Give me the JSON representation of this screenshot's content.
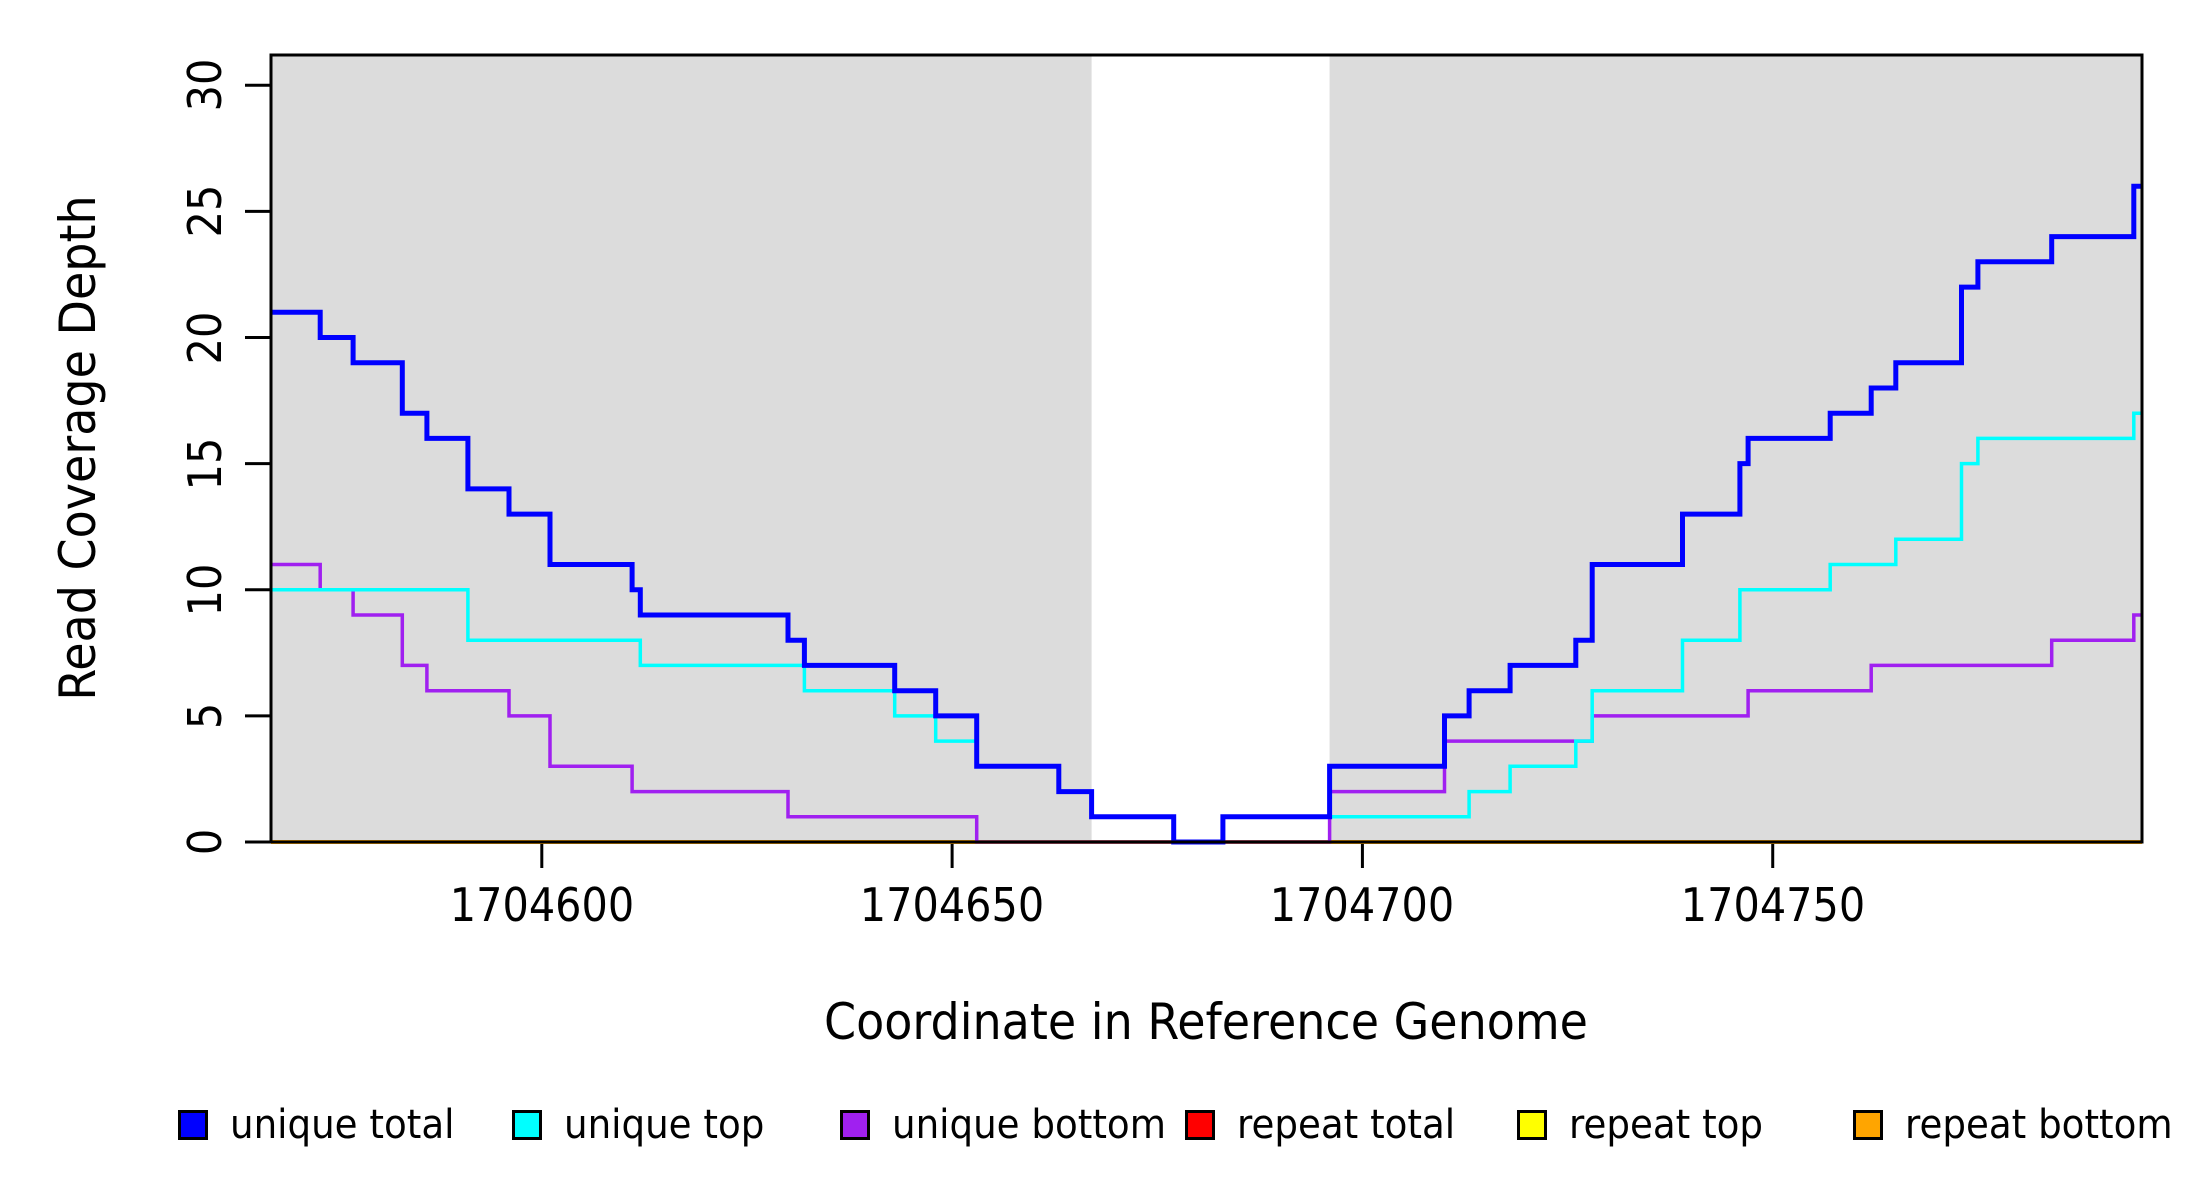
{
  "figure": {
    "background": "#ffffff",
    "frame_color": "#000000"
  },
  "chart_data": {
    "type": "line",
    "subtype": "step",
    "title": "",
    "xlabel": "Coordinate in Reference Genome",
    "ylabel": "Read Coverage Depth",
    "xlim": [
      1704567,
      1704795
    ],
    "ylim": [
      0,
      31.2
    ],
    "grid": false,
    "legend_position": "bottom",
    "xticks": [
      {
        "value": 1704600,
        "label": "1704600"
      },
      {
        "value": 1704650,
        "label": "1704650"
      },
      {
        "value": 1704700,
        "label": "1704700"
      },
      {
        "value": 1704750,
        "label": "1704750"
      }
    ],
    "yticks": [
      {
        "value": 0,
        "label": "0"
      },
      {
        "value": 5,
        "label": "5"
      },
      {
        "value": 10,
        "label": "10"
      },
      {
        "value": 15,
        "label": "15"
      },
      {
        "value": 20,
        "label": "20"
      },
      {
        "value": 25,
        "label": "25"
      },
      {
        "value": 30,
        "label": "30"
      }
    ],
    "shaded_regions": {
      "color": "#DCDCDC",
      "ranges": [
        [
          1704567,
          1704667
        ],
        [
          1704696,
          1704795
        ]
      ]
    },
    "series": [
      {
        "name": "unique total",
        "color": "#0000FF",
        "line_width": 5,
        "steps": [
          [
            1704567,
            21
          ],
          [
            1704573,
            20
          ],
          [
            1704577,
            19
          ],
          [
            1704583,
            17
          ],
          [
            1704586,
            16
          ],
          [
            1704591,
            14
          ],
          [
            1704596,
            13
          ],
          [
            1704601,
            11
          ],
          [
            1704611,
            10
          ],
          [
            1704612,
            9
          ],
          [
            1704630,
            8
          ],
          [
            1704632,
            7
          ],
          [
            1704643,
            6
          ],
          [
            1704648,
            5
          ],
          [
            1704653,
            3
          ],
          [
            1704663,
            2
          ],
          [
            1704667,
            1
          ],
          [
            1704677,
            0
          ],
          [
            1704683,
            1
          ],
          [
            1704696,
            3
          ],
          [
            1704710,
            5
          ],
          [
            1704713,
            6
          ],
          [
            1704718,
            7
          ],
          [
            1704726,
            8
          ],
          [
            1704728,
            11
          ],
          [
            1704739,
            13
          ],
          [
            1704746,
            15
          ],
          [
            1704747,
            16
          ],
          [
            1704757,
            17
          ],
          [
            1704762,
            18
          ],
          [
            1704765,
            19
          ],
          [
            1704773,
            22
          ],
          [
            1704775,
            23
          ],
          [
            1704784,
            24
          ],
          [
            1704794,
            26
          ]
        ]
      },
      {
        "name": "unique top",
        "color": "#00FFFF",
        "line_width": 3.5,
        "steps": [
          [
            1704567,
            10
          ],
          [
            1704591,
            8
          ],
          [
            1704612,
            7
          ],
          [
            1704632,
            6
          ],
          [
            1704643,
            5
          ],
          [
            1704648,
            4
          ],
          [
            1704653,
            3
          ],
          [
            1704663,
            2
          ],
          [
            1704667,
            1
          ],
          [
            1704677,
            0
          ],
          [
            1704683,
            1
          ],
          [
            1704713,
            2
          ],
          [
            1704718,
            3
          ],
          [
            1704726,
            4
          ],
          [
            1704728,
            6
          ],
          [
            1704739,
            8
          ],
          [
            1704746,
            10
          ],
          [
            1704757,
            11
          ],
          [
            1704765,
            12
          ],
          [
            1704773,
            15
          ],
          [
            1704775,
            16
          ],
          [
            1704794,
            17
          ]
        ]
      },
      {
        "name": "unique bottom",
        "color": "#A020F0",
        "line_width": 3.5,
        "steps": [
          [
            1704567,
            11
          ],
          [
            1704573,
            10
          ],
          [
            1704577,
            9
          ],
          [
            1704583,
            7
          ],
          [
            1704586,
            6
          ],
          [
            1704596,
            5
          ],
          [
            1704601,
            3
          ],
          [
            1704611,
            2
          ],
          [
            1704630,
            1
          ],
          [
            1704653,
            0
          ],
          [
            1704696,
            2
          ],
          [
            1704710,
            4
          ],
          [
            1704728,
            5
          ],
          [
            1704747,
            6
          ],
          [
            1704762,
            7
          ],
          [
            1704784,
            8
          ],
          [
            1704794,
            9
          ]
        ]
      },
      {
        "name": "repeat total",
        "color": "#FF0000",
        "line_width": 3.5,
        "steps": [
          [
            1704567,
            0
          ]
        ]
      },
      {
        "name": "repeat top",
        "color": "#FFFF00",
        "line_width": 3.5,
        "steps": [
          [
            1704567,
            0
          ]
        ]
      },
      {
        "name": "repeat bottom",
        "color": "#FFA500",
        "line_width": 4,
        "steps": [
          [
            1704567,
            0
          ]
        ]
      }
    ],
    "draw_order": [
      "repeat total",
      "repeat top",
      "repeat bottom",
      "unique bottom",
      "unique top",
      "unique total"
    ],
    "legend": {
      "items": [
        {
          "label": "unique total",
          "color": "#0000FF"
        },
        {
          "label": "unique top",
          "color": "#00FFFF"
        },
        {
          "label": "unique bottom",
          "color": "#A020F0"
        },
        {
          "label": "repeat total",
          "color": "#FF0000"
        },
        {
          "label": "repeat top",
          "color": "#FFFF00"
        },
        {
          "label": "repeat bottom",
          "color": "#FFA500"
        }
      ]
    }
  }
}
